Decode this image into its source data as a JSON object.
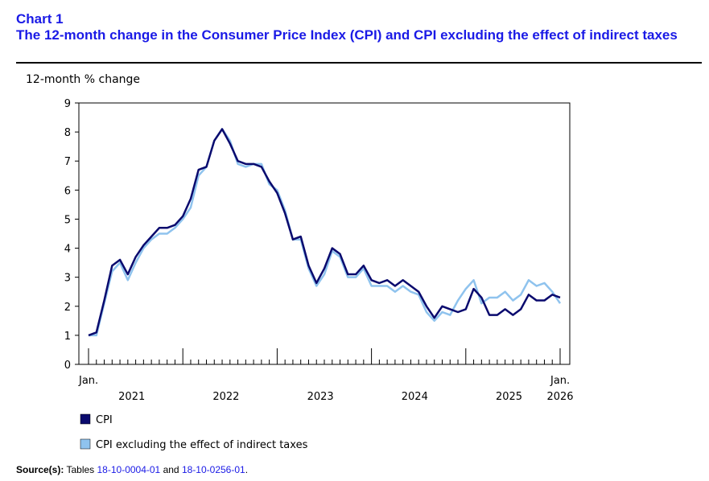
{
  "header": {
    "chart_number": "Chart 1",
    "title": "The 12-month change in the Consumer Price Index (CPI) and CPI excluding the effect of indirect taxes"
  },
  "source": {
    "label": "Source(s):",
    "text_before": "Tables",
    "link1": "18-10-0004-01",
    "text_between": "and",
    "link2": "18-10-0256-01",
    "text_after": "."
  },
  "colors": {
    "cpi": "#0a0a6e",
    "cpi_ex": "#8fc3ee",
    "title": "#1a1ae6",
    "link": "#1a1ae6"
  },
  "chart_data": {
    "type": "line",
    "title": "The 12-month change in the Consumer Price Index (CPI) and CPI excluding the effect of indirect taxes",
    "ylabel": "12-month % change",
    "xlabel": "",
    "ylim": [
      0,
      9
    ],
    "yticks": [
      0,
      1,
      2,
      3,
      4,
      5,
      6,
      7,
      8,
      9
    ],
    "x_start_label": "Jan.",
    "x_end_month_label": "Jan.",
    "year_labels": [
      "2021",
      "2022",
      "2023",
      "2024",
      "2025",
      "2026"
    ],
    "n_months": 61,
    "legend_position": "bottom-left",
    "series": [
      {
        "name": "CPI",
        "values": [
          1.0,
          1.1,
          2.2,
          3.4,
          3.6,
          3.1,
          3.7,
          4.1,
          4.4,
          4.7,
          4.7,
          4.8,
          5.1,
          5.7,
          6.7,
          6.8,
          7.7,
          8.1,
          7.6,
          7.0,
          6.9,
          6.9,
          6.8,
          6.3,
          5.9,
          5.2,
          4.3,
          4.4,
          3.4,
          2.8,
          3.3,
          4.0,
          3.8,
          3.1,
          3.1,
          3.4,
          2.9,
          2.8,
          2.9,
          2.7,
          2.9,
          2.7,
          2.5,
          2.0,
          1.6,
          2.0,
          1.9,
          1.8,
          1.9,
          2.6,
          2.3,
          1.7,
          1.7,
          1.9,
          1.7,
          1.9,
          2.4,
          2.2,
          2.2,
          2.4,
          2.3
        ]
      },
      {
        "name": "CPI excluding the effect of indirect taxes",
        "values": [
          1.0,
          1.0,
          2.1,
          3.2,
          3.5,
          2.9,
          3.5,
          4.0,
          4.3,
          4.5,
          4.5,
          4.7,
          5.0,
          5.4,
          6.5,
          6.8,
          7.7,
          8.1,
          7.7,
          6.9,
          6.8,
          6.9,
          6.9,
          6.2,
          6.0,
          5.3,
          4.3,
          4.3,
          3.3,
          2.7,
          3.1,
          3.9,
          3.7,
          3.0,
          3.0,
          3.3,
          2.7,
          2.7,
          2.7,
          2.5,
          2.7,
          2.5,
          2.4,
          1.8,
          1.5,
          1.8,
          1.7,
          2.2,
          2.6,
          2.9,
          2.1,
          2.3,
          2.3,
          2.5,
          2.2,
          2.4,
          2.9,
          2.7,
          2.8,
          2.5,
          2.1
        ]
      }
    ]
  }
}
